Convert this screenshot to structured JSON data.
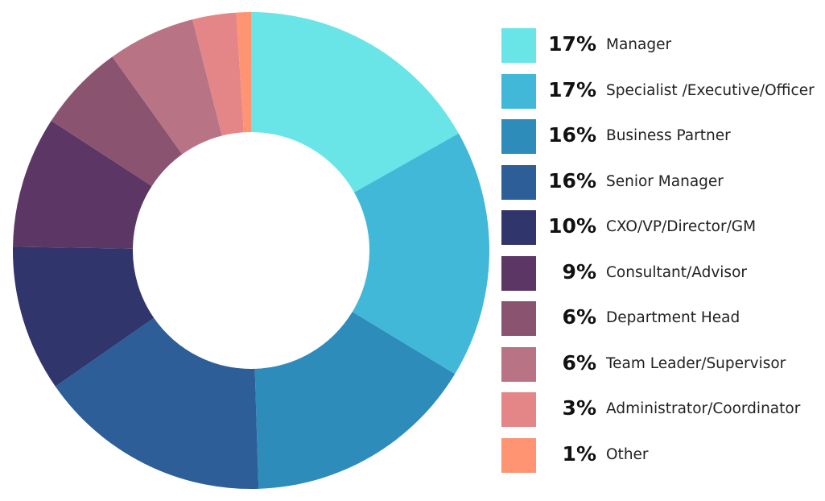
{
  "chart_data": {
    "type": "pie",
    "donut": true,
    "legend_position": "right",
    "slices": [
      {
        "label": "Manager",
        "value": 17,
        "display": "17%",
        "color": "#69E5E8"
      },
      {
        "label": "Specialist /Executive/Officer",
        "value": 17,
        "display": "17%",
        "color": "#42B8D8"
      },
      {
        "label": " Business Partner",
        "value": 16,
        "display": "16%",
        "color": "#2E8CBB"
      },
      {
        "label": " Senior Manager",
        "value": 16,
        "display": "16%",
        "color": "#2E5E98"
      },
      {
        "label": "CXO/VP/Director/GM",
        "value": 10,
        "display": "10%",
        "color": "#30356C"
      },
      {
        "label": "Consultant/Advisor",
        "value": 9,
        "display": "9%",
        "color": "#5C3766"
      },
      {
        "label": "Department Head",
        "value": 6,
        "display": "6%",
        "color": "#8A5470"
      },
      {
        "label": "Team Leader/Supervisor",
        "value": 6,
        "display": "6%",
        "color": "#B87385"
      },
      {
        "label": "Administrator/Coordinator",
        "value": 3,
        "display": "3%",
        "color": "#E48688"
      },
      {
        "label": "Other",
        "value": 1,
        "display": "1%",
        "color": "#FF9473"
      }
    ]
  }
}
